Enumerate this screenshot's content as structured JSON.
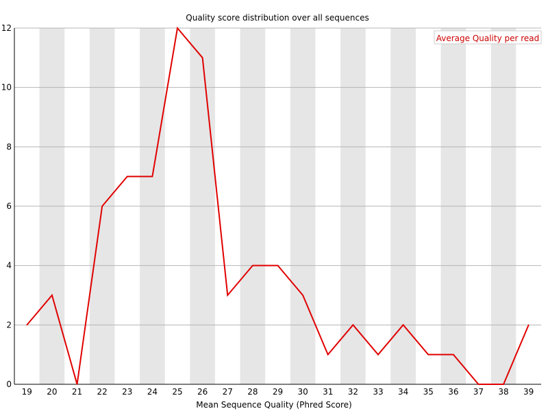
{
  "chart_data": {
    "type": "line",
    "title": "Quality score distribution over all sequences",
    "xlabel": "Mean Sequence Quality (Phred Score)",
    "ylabel": "",
    "x": [
      19,
      20,
      21,
      22,
      23,
      24,
      25,
      26,
      27,
      28,
      29,
      30,
      31,
      32,
      33,
      34,
      35,
      36,
      37,
      38,
      39
    ],
    "series": [
      {
        "name": "Average Quality per read",
        "color": "#e00000",
        "values": [
          2,
          3,
          0,
          6,
          7,
          7,
          12,
          11,
          3,
          4,
          4,
          3,
          1,
          2,
          1,
          2,
          1,
          1,
          0,
          0,
          2
        ]
      }
    ],
    "ylim": [
      0,
      12
    ],
    "yticks": [
      0,
      2,
      4,
      6,
      8,
      10,
      12
    ],
    "grid": true,
    "legend_position": "top-right",
    "band_color": "#e6e6e6"
  }
}
